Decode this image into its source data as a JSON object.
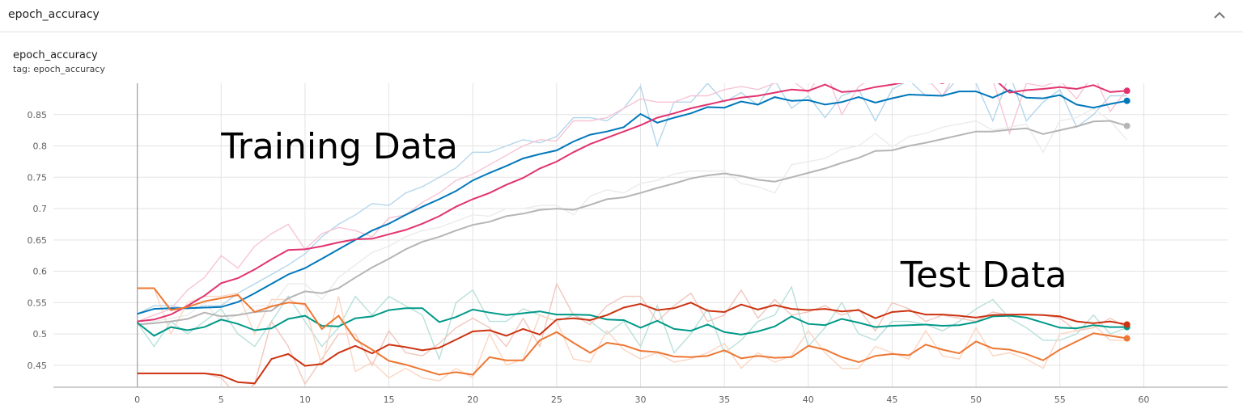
{
  "header": {
    "title": "epoch_accuracy",
    "collapse_icon": "chevron-up-icon"
  },
  "card": {
    "title": "epoch_accuracy",
    "tag": "tag: epoch_accuracy"
  },
  "chart_data": {
    "type": "line",
    "title": "epoch_accuracy",
    "xlabel": "",
    "ylabel": "",
    "xlim": [
      -5,
      65
    ],
    "ylim": [
      0.415,
      0.9
    ],
    "grid": true,
    "x_ticks": [
      0,
      5,
      10,
      15,
      20,
      25,
      30,
      35,
      40,
      45,
      50,
      55,
      60
    ],
    "y_ticks": [
      0.45,
      0.5,
      0.55,
      0.6,
      0.65,
      0.7,
      0.75,
      0.8,
      0.85
    ],
    "annotations": [
      {
        "text": "Training Data",
        "x": 5,
        "y": 0.78
      },
      {
        "text": "Test Data",
        "x": 45.5,
        "y": 0.575
      }
    ],
    "series": [
      {
        "color": "#0077bb",
        "raw_color": "#b3d6ec",
        "smoothed": [
          0.532,
          0.54,
          0.541,
          0.541,
          0.542,
          0.543,
          0.551,
          0.565,
          0.58,
          0.595,
          0.605,
          0.62,
          0.635,
          0.65,
          0.665,
          0.676,
          0.69,
          0.703,
          0.715,
          0.728,
          0.745,
          0.757,
          0.768,
          0.78,
          0.787,
          0.793,
          0.807,
          0.818,
          0.823,
          0.83,
          0.851,
          0.837,
          0.845,
          0.852,
          0.862,
          0.861,
          0.871,
          0.866,
          0.878,
          0.872,
          0.873,
          0.866,
          0.87,
          0.878,
          0.869,
          0.876,
          0.882,
          0.881,
          0.88,
          0.887,
          0.887,
          0.877,
          0.889,
          0.877,
          0.876,
          0.881,
          0.866,
          0.861,
          0.867,
          0.872
        ],
        "raw": [
          0.532,
          0.545,
          0.545,
          0.54,
          0.545,
          0.545,
          0.565,
          0.58,
          0.595,
          0.61,
          0.628,
          0.655,
          0.675,
          0.69,
          0.708,
          0.705,
          0.725,
          0.735,
          0.75,
          0.765,
          0.79,
          0.79,
          0.8,
          0.81,
          0.805,
          0.815,
          0.845,
          0.845,
          0.84,
          0.86,
          0.895,
          0.8,
          0.87,
          0.87,
          0.9,
          0.87,
          0.885,
          0.865,
          0.905,
          0.86,
          0.88,
          0.845,
          0.88,
          0.89,
          0.84,
          0.89,
          0.905,
          0.88,
          0.88,
          0.91,
          0.9,
          0.84,
          0.915,
          0.84,
          0.87,
          0.89,
          0.83,
          0.85,
          0.88,
          0.88
        ]
      },
      {
        "color": "#e2336f",
        "raw_color": "#f7c4d6",
        "smoothed": [
          0.52,
          0.523,
          0.531,
          0.545,
          0.561,
          0.581,
          0.589,
          0.603,
          0.619,
          0.634,
          0.635,
          0.64,
          0.646,
          0.651,
          0.652,
          0.659,
          0.666,
          0.676,
          0.688,
          0.703,
          0.715,
          0.725,
          0.738,
          0.749,
          0.764,
          0.775,
          0.79,
          0.803,
          0.813,
          0.823,
          0.833,
          0.845,
          0.852,
          0.86,
          0.866,
          0.872,
          0.877,
          0.88,
          0.885,
          0.89,
          0.888,
          0.898,
          0.886,
          0.888,
          0.894,
          0.898,
          0.903,
          0.906,
          0.9,
          0.909,
          0.91,
          0.909,
          0.885,
          0.889,
          0.891,
          0.894,
          0.891,
          0.897,
          0.886,
          0.888
        ],
        "raw": [
          0.52,
          0.53,
          0.54,
          0.57,
          0.59,
          0.625,
          0.605,
          0.64,
          0.66,
          0.675,
          0.635,
          0.66,
          0.67,
          0.665,
          0.655,
          0.685,
          0.69,
          0.71,
          0.725,
          0.745,
          0.755,
          0.77,
          0.785,
          0.8,
          0.81,
          0.808,
          0.84,
          0.84,
          0.845,
          0.86,
          0.875,
          0.87,
          0.87,
          0.88,
          0.88,
          0.89,
          0.895,
          0.89,
          0.9,
          0.905,
          0.885,
          0.925,
          0.85,
          0.895,
          0.91,
          0.905,
          0.915,
          0.91,
          0.88,
          0.925,
          0.91,
          0.905,
          0.82,
          0.9,
          0.895,
          0.905,
          0.875,
          0.915,
          0.855,
          0.89
        ]
      },
      {
        "color": "#b5b5b5",
        "raw_color": "#ebebeb",
        "smoothed": [
          0.515,
          0.517,
          0.52,
          0.524,
          0.534,
          0.528,
          0.53,
          0.535,
          0.537,
          0.557,
          0.568,
          0.565,
          0.573,
          0.59,
          0.606,
          0.62,
          0.635,
          0.647,
          0.655,
          0.665,
          0.674,
          0.679,
          0.688,
          0.692,
          0.698,
          0.7,
          0.698,
          0.706,
          0.715,
          0.718,
          0.725,
          0.733,
          0.74,
          0.748,
          0.753,
          0.756,
          0.752,
          0.746,
          0.743,
          0.75,
          0.757,
          0.764,
          0.773,
          0.781,
          0.792,
          0.793,
          0.8,
          0.805,
          0.811,
          0.817,
          0.823,
          0.823,
          0.826,
          0.828,
          0.819,
          0.825,
          0.831,
          0.839,
          0.84,
          0.832
        ],
        "raw": [
          0.515,
          0.52,
          0.525,
          0.53,
          0.55,
          0.52,
          0.53,
          0.545,
          0.545,
          0.58,
          0.58,
          0.555,
          0.59,
          0.61,
          0.63,
          0.64,
          0.655,
          0.665,
          0.67,
          0.68,
          0.69,
          0.688,
          0.7,
          0.7,
          0.705,
          0.705,
          0.69,
          0.72,
          0.73,
          0.725,
          0.74,
          0.745,
          0.755,
          0.76,
          0.76,
          0.76,
          0.74,
          0.735,
          0.725,
          0.77,
          0.775,
          0.78,
          0.795,
          0.8,
          0.82,
          0.798,
          0.815,
          0.82,
          0.83,
          0.835,
          0.84,
          0.825,
          0.83,
          0.835,
          0.79,
          0.84,
          0.845,
          0.86,
          0.84,
          0.81
        ]
      },
      {
        "color": "#009988",
        "raw_color": "#b8e0da",
        "smoothed": [
          0.518,
          0.497,
          0.511,
          0.506,
          0.511,
          0.523,
          0.516,
          0.506,
          0.509,
          0.524,
          0.529,
          0.513,
          0.512,
          0.525,
          0.528,
          0.538,
          0.541,
          0.541,
          0.519,
          0.527,
          0.539,
          0.534,
          0.53,
          0.533,
          0.536,
          0.531,
          0.531,
          0.53,
          0.523,
          0.522,
          0.51,
          0.521,
          0.508,
          0.505,
          0.515,
          0.503,
          0.499,
          0.504,
          0.512,
          0.528,
          0.516,
          0.514,
          0.524,
          0.518,
          0.511,
          0.513,
          0.514,
          0.515,
          0.513,
          0.514,
          0.519,
          0.528,
          0.529,
          0.526,
          0.518,
          0.51,
          0.509,
          0.514,
          0.511,
          0.511
        ],
        "raw": [
          0.518,
          0.48,
          0.52,
          0.5,
          0.52,
          0.54,
          0.5,
          0.48,
          0.52,
          0.56,
          0.52,
          0.48,
          0.51,
          0.56,
          0.53,
          0.56,
          0.545,
          0.53,
          0.46,
          0.55,
          0.57,
          0.52,
          0.52,
          0.54,
          0.53,
          0.52,
          0.53,
          0.52,
          0.5,
          0.52,
          0.48,
          0.545,
          0.47,
          0.5,
          0.54,
          0.47,
          0.49,
          0.52,
          0.53,
          0.575,
          0.48,
          0.51,
          0.55,
          0.5,
          0.49,
          0.52,
          0.52,
          0.515,
          0.505,
          0.52,
          0.54,
          0.555,
          0.525,
          0.51,
          0.49,
          0.49,
          0.5,
          0.53,
          0.5,
          0.51
        ]
      },
      {
        "color": "#cc3311",
        "raw_color": "#f0c7bd",
        "smoothed": [
          0.437,
          0.437,
          0.437,
          0.437,
          0.437,
          0.434,
          0.423,
          0.421,
          0.46,
          0.468,
          0.449,
          0.452,
          0.47,
          0.481,
          0.469,
          0.483,
          0.479,
          0.474,
          0.478,
          0.491,
          0.504,
          0.506,
          0.497,
          0.508,
          0.499,
          0.523,
          0.525,
          0.522,
          0.53,
          0.542,
          0.548,
          0.538,
          0.541,
          0.55,
          0.537,
          0.535,
          0.547,
          0.539,
          0.546,
          0.54,
          0.538,
          0.54,
          0.536,
          0.538,
          0.525,
          0.535,
          0.537,
          0.531,
          0.531,
          0.529,
          0.526,
          0.53,
          0.531,
          0.531,
          0.53,
          0.528,
          0.52,
          0.517,
          0.52,
          0.515
        ],
        "raw": [
          0.437,
          0.437,
          0.437,
          0.437,
          0.437,
          0.43,
          0.4,
          0.42,
          0.52,
          0.48,
          0.42,
          0.46,
          0.5,
          0.5,
          0.45,
          0.505,
          0.47,
          0.465,
          0.485,
          0.51,
          0.525,
          0.51,
          0.48,
          0.525,
          0.48,
          0.58,
          0.53,
          0.515,
          0.545,
          0.56,
          0.56,
          0.52,
          0.545,
          0.565,
          0.52,
          0.53,
          0.57,
          0.525,
          0.555,
          0.53,
          0.535,
          0.545,
          0.53,
          0.54,
          0.505,
          0.55,
          0.54,
          0.52,
          0.53,
          0.525,
          0.52,
          0.535,
          0.53,
          0.53,
          0.53,
          0.525,
          0.505,
          0.51,
          0.525,
          0.51
        ]
      },
      {
        "color": "#ee7733",
        "raw_color": "#fbd6c2",
        "smoothed": [
          0.573,
          0.573,
          0.538,
          0.543,
          0.552,
          0.557,
          0.562,
          0.535,
          0.544,
          0.55,
          0.548,
          0.508,
          0.529,
          0.491,
          0.475,
          0.457,
          0.451,
          0.443,
          0.435,
          0.439,
          0.435,
          0.463,
          0.458,
          0.458,
          0.49,
          0.503,
          0.486,
          0.47,
          0.486,
          0.482,
          0.473,
          0.471,
          0.464,
          0.463,
          0.465,
          0.474,
          0.461,
          0.465,
          0.462,
          0.463,
          0.481,
          0.475,
          0.463,
          0.455,
          0.465,
          0.468,
          0.466,
          0.483,
          0.475,
          0.469,
          0.488,
          0.477,
          0.475,
          0.468,
          0.458,
          0.475,
          0.488,
          0.501,
          0.497,
          0.493
        ],
        "raw": [
          0.573,
          0.573,
          0.5,
          0.55,
          0.56,
          0.56,
          0.565,
          0.5,
          0.555,
          0.555,
          0.545,
          0.45,
          0.56,
          0.44,
          0.455,
          0.43,
          0.445,
          0.43,
          0.425,
          0.445,
          0.43,
          0.5,
          0.45,
          0.46,
          0.53,
          0.52,
          0.46,
          0.455,
          0.505,
          0.475,
          0.46,
          0.47,
          0.455,
          0.46,
          0.47,
          0.485,
          0.445,
          0.47,
          0.455,
          0.465,
          0.505,
          0.47,
          0.445,
          0.445,
          0.48,
          0.47,
          0.46,
          0.505,
          0.465,
          0.46,
          0.51,
          0.465,
          0.47,
          0.46,
          0.445,
          0.5,
          0.505,
          0.515,
          0.49,
          0.49
        ]
      }
    ]
  }
}
